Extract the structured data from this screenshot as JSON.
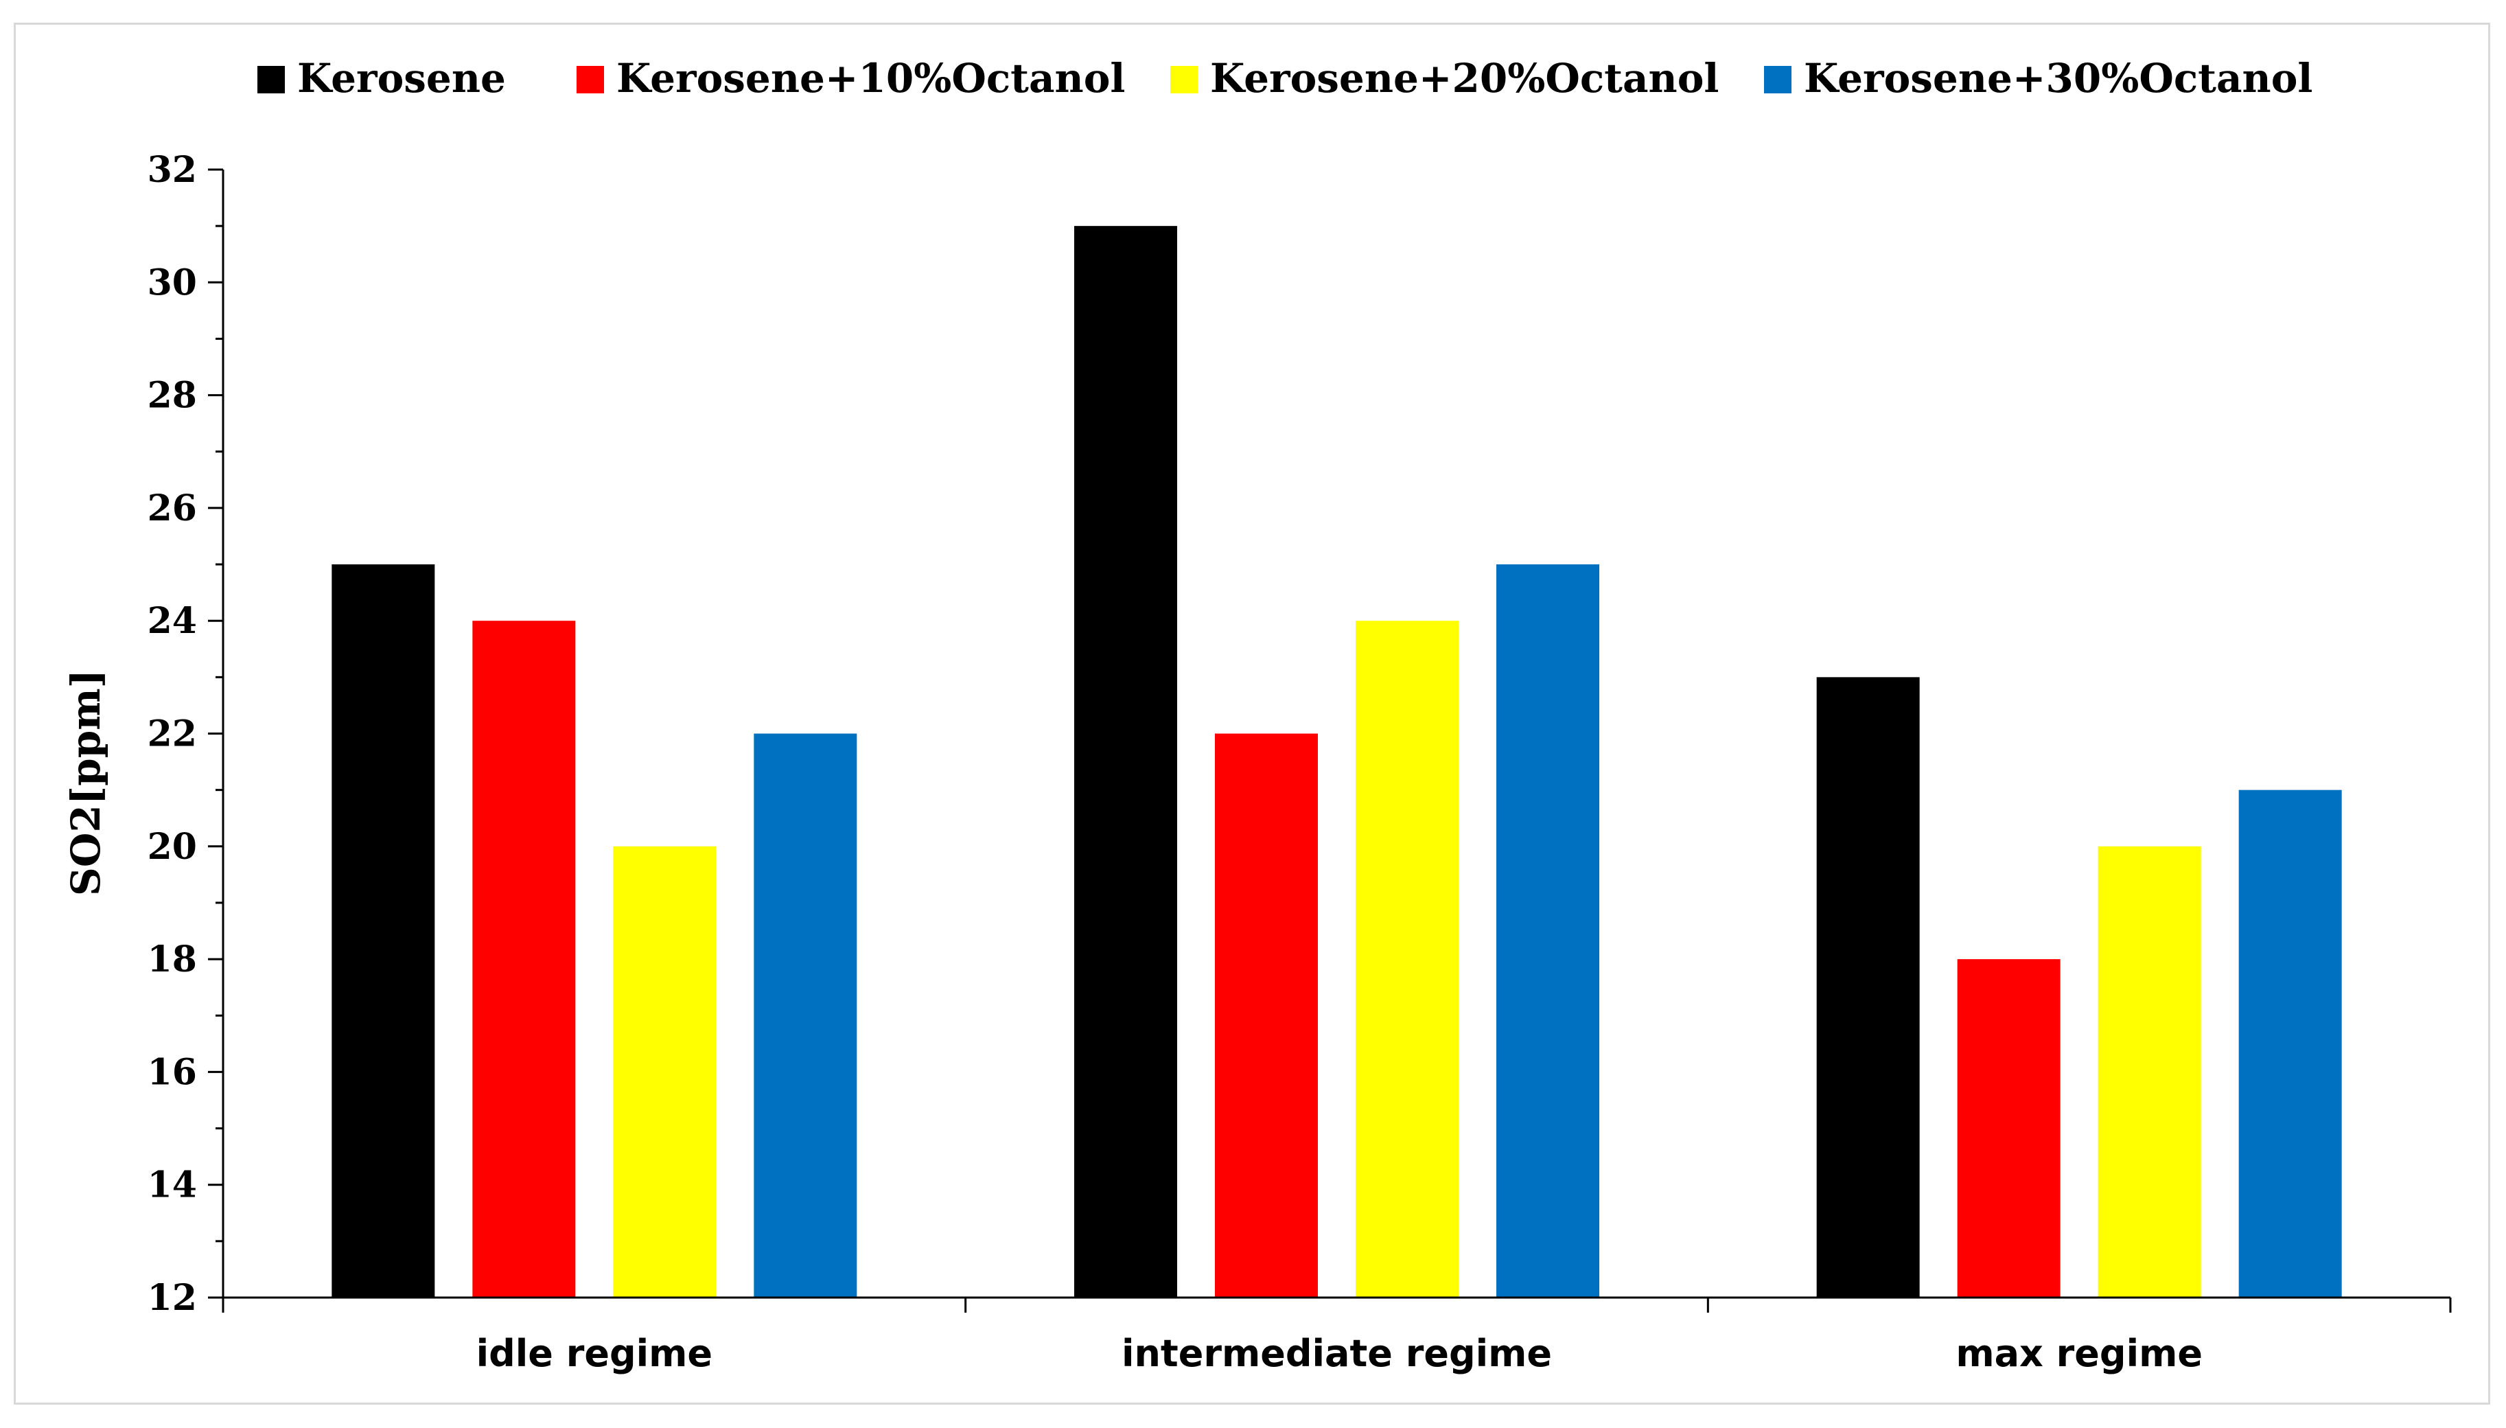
{
  "chart_data": {
    "type": "bar",
    "title": "",
    "xlabel": "",
    "ylabel": "SO2[ppm]",
    "categories": [
      "idle regime",
      "intermediate regime",
      "max regime"
    ],
    "series": [
      {
        "name": "Kerosene",
        "color": "#000000",
        "values": [
          25,
          31,
          23
        ]
      },
      {
        "name": "Kerosene+10%Octanol",
        "color": "#ff0000",
        "values": [
          24,
          22,
          18
        ]
      },
      {
        "name": "Kerosene+20%Octanol",
        "color": "#ffff00",
        "values": [
          20,
          24,
          20
        ]
      },
      {
        "name": "Kerosene+30%Octanol",
        "color": "#0070c0",
        "values": [
          22,
          25,
          21
        ]
      }
    ],
    "ylim": [
      12,
      32
    ],
    "yticks": [
      "12",
      "14",
      "16",
      "18",
      "20",
      "22",
      "24",
      "26",
      "28",
      "30",
      "32"
    ],
    "grid": false,
    "legend_position": "top"
  }
}
